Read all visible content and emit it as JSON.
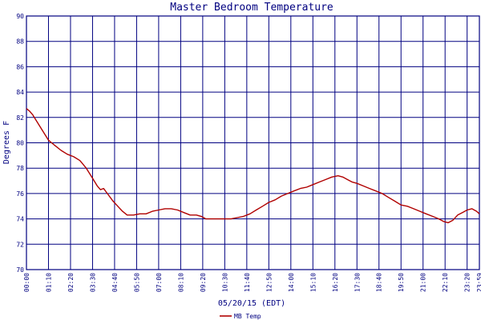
{
  "chart_data": {
    "type": "line",
    "title": "Master Bedroom Temperature",
    "xlabel": "05/20/15 (EDT)",
    "ylabel": "Degrees F",
    "ylim": [
      70,
      90
    ],
    "yticks": [
      "70",
      "72",
      "74",
      "76",
      "78",
      "80",
      "82",
      "84",
      "86",
      "88",
      "90"
    ],
    "xticks": [
      "00:00",
      "01:10",
      "02:20",
      "03:30",
      "04:40",
      "05:50",
      "07:00",
      "08:10",
      "09:20",
      "10:30",
      "11:40",
      "12:50",
      "14:00",
      "15:10",
      "16:20",
      "17:30",
      "18:40",
      "19:50",
      "21:00",
      "22:10",
      "23:20",
      "23:59"
    ],
    "grid": true,
    "colors": {
      "line": "#b00000",
      "grid": "#000080",
      "text": "#000080"
    },
    "series": [
      {
        "name": "MB Temp",
        "x": [
          "00:00",
          "00:10",
          "00:20",
          "00:30",
          "00:45",
          "01:00",
          "01:10",
          "01:30",
          "01:50",
          "02:10",
          "02:30",
          "02:50",
          "03:10",
          "03:30",
          "03:45",
          "03:55",
          "04:05",
          "04:20",
          "04:35",
          "04:50",
          "05:05",
          "05:20",
          "05:40",
          "06:00",
          "06:20",
          "06:40",
          "07:00",
          "07:20",
          "07:40",
          "08:00",
          "08:20",
          "08:40",
          "09:00",
          "09:15",
          "09:30",
          "09:50",
          "10:10",
          "10:30",
          "10:50",
          "11:10",
          "11:30",
          "11:50",
          "12:10",
          "12:30",
          "12:50",
          "13:10",
          "13:30",
          "13:50",
          "14:10",
          "14:30",
          "14:50",
          "15:10",
          "15:30",
          "15:50",
          "16:10",
          "16:30",
          "16:45",
          "17:00",
          "17:15",
          "17:30",
          "17:50",
          "18:10",
          "18:30",
          "18:50",
          "19:10",
          "19:30",
          "19:50",
          "20:10",
          "20:30",
          "20:50",
          "21:10",
          "21:30",
          "21:50",
          "22:05",
          "22:20",
          "22:35",
          "22:50",
          "23:05",
          "23:20",
          "23:35",
          "23:50",
          "23:59"
        ],
        "values": [
          82.7,
          82.5,
          82.2,
          81.8,
          81.2,
          80.6,
          80.2,
          79.8,
          79.4,
          79.1,
          78.9,
          78.6,
          78.0,
          77.2,
          76.6,
          76.3,
          76.4,
          75.9,
          75.4,
          75.0,
          74.6,
          74.3,
          74.3,
          74.4,
          74.4,
          74.6,
          74.7,
          74.8,
          74.8,
          74.7,
          74.5,
          74.3,
          74.3,
          74.2,
          74.0,
          74.0,
          74.0,
          74.0,
          74.0,
          74.1,
          74.2,
          74.4,
          74.7,
          75.0,
          75.3,
          75.5,
          75.8,
          76.0,
          76.2,
          76.4,
          76.5,
          76.7,
          76.9,
          77.1,
          77.3,
          77.4,
          77.3,
          77.1,
          76.9,
          76.8,
          76.6,
          76.4,
          76.2,
          76.0,
          75.7,
          75.4,
          75.1,
          75.0,
          74.8,
          74.6,
          74.4,
          74.2,
          74.0,
          73.8,
          73.7,
          73.9,
          74.3,
          74.5,
          74.7,
          74.8,
          74.6,
          74.4
        ]
      }
    ]
  }
}
